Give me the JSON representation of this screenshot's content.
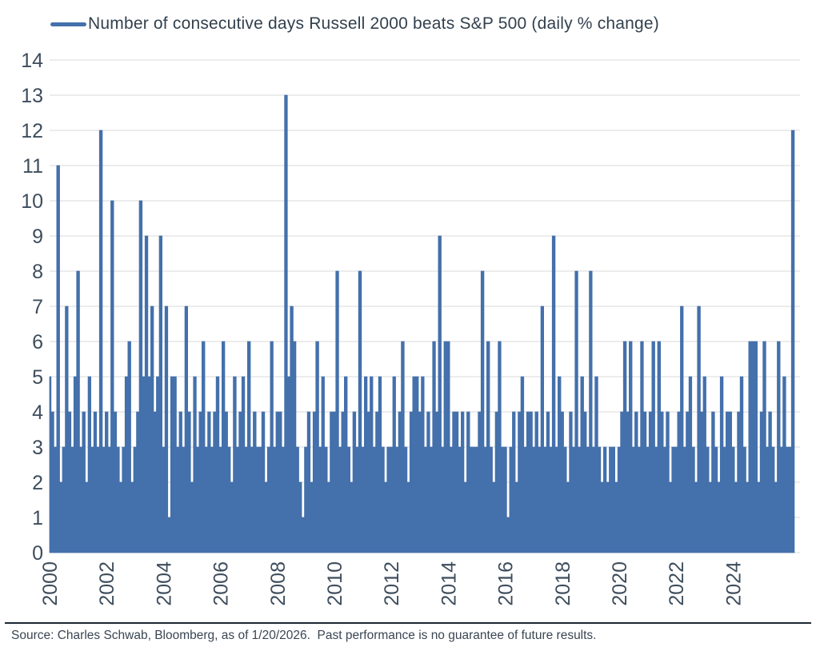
{
  "footer": {
    "source": "Source: Charles Schwab, Bloomberg, as of 1/20/2026.  Past performance is no guarantee of future results."
  },
  "colors": {
    "accent": "#4470AB",
    "title_text": "#32404E",
    "axis_text": "#3E4D5C",
    "footer_text": "#3A4653",
    "grid": "#D8D8D8",
    "divider": "#1C2833",
    "background": "#FFFFFF"
  },
  "chart_data": {
    "type": "area",
    "title": "Number of consecutive days Russell 2000 beats S&P 500 (daily % change)",
    "xlabel": "",
    "ylabel": "",
    "ylim": [
      0,
      14
    ],
    "grid": true,
    "legend_position": "top-left",
    "series_color": "#4470AB",
    "y_tick_labels": [
      "0",
      "1",
      "2",
      "3",
      "4",
      "5",
      "6",
      "7",
      "8",
      "9",
      "10",
      "11",
      "12",
      "13",
      "14"
    ],
    "x_ticks": [
      2000,
      2002,
      2004,
      2006,
      2008,
      2010,
      2012,
      2014,
      2016,
      2018,
      2020,
      2022,
      2024
    ],
    "x_tick_labels": [
      "2000",
      "2002",
      "2004",
      "2006",
      "2008",
      "2010",
      "2012",
      "2014",
      "2016",
      "2018",
      "2020",
      "2022",
      "2024"
    ],
    "x_start": 2000.0,
    "x_step": 0.1,
    "notable_peaks": [
      {
        "x": 2000.3,
        "value": 11
      },
      {
        "x": 2001.8,
        "value": 12
      },
      {
        "x": 2002.2,
        "value": 10
      },
      {
        "x": 2003.2,
        "value": 10
      },
      {
        "x": 2008.3,
        "value": 13
      },
      {
        "x": 2013.7,
        "value": 9
      },
      {
        "x": 2017.7,
        "value": 9
      },
      {
        "x": 2026.1,
        "value": 12
      }
    ],
    "values": [
      5,
      4,
      3,
      11,
      2,
      3,
      7,
      4,
      3,
      5,
      8,
      3,
      4,
      2,
      5,
      3,
      4,
      3,
      12,
      3,
      4,
      3,
      10,
      4,
      3,
      2,
      3,
      5,
      6,
      2,
      3,
      4,
      10,
      5,
      9,
      5,
      7,
      4,
      5,
      9,
      3,
      7,
      1,
      5,
      5,
      3,
      4,
      3,
      7,
      4,
      2,
      5,
      3,
      4,
      6,
      3,
      4,
      3,
      4,
      5,
      3,
      6,
      4,
      3,
      2,
      5,
      3,
      4,
      5,
      3,
      6,
      3,
      4,
      3,
      3,
      4,
      2,
      3,
      6,
      3,
      4,
      4,
      3,
      13,
      5,
      7,
      6,
      3,
      2,
      1,
      3,
      4,
      2,
      4,
      6,
      3,
      5,
      3,
      2,
      4,
      4,
      8,
      3,
      4,
      5,
      3,
      2,
      4,
      3,
      8,
      3,
      5,
      4,
      5,
      3,
      4,
      5,
      3,
      2,
      3,
      3,
      5,
      3,
      4,
      6,
      3,
      2,
      4,
      5,
      5,
      4,
      5,
      3,
      4,
      3,
      6,
      4,
      9,
      3,
      6,
      6,
      3,
      4,
      4,
      3,
      4,
      2,
      4,
      3,
      3,
      3,
      4,
      8,
      3,
      6,
      3,
      2,
      4,
      6,
      3,
      3,
      1,
      3,
      4,
      2,
      4,
      5,
      3,
      4,
      4,
      3,
      4,
      3,
      7,
      3,
      4,
      3,
      9,
      3,
      5,
      4,
      3,
      2,
      4,
      3,
      8,
      3,
      5,
      4,
      3,
      8,
      3,
      5,
      3,
      2,
      3,
      2,
      3,
      3,
      2,
      3,
      4,
      6,
      4,
      6,
      3,
      4,
      3,
      6,
      4,
      3,
      4,
      6,
      3,
      6,
      4,
      3,
      4,
      2,
      3,
      3,
      4,
      7,
      3,
      4,
      5,
      3,
      2,
      7,
      4,
      5,
      3,
      2,
      4,
      3,
      2,
      5,
      3,
      4,
      4,
      3,
      2,
      4,
      5,
      3,
      2,
      6,
      6,
      6,
      2,
      4,
      6,
      3,
      4,
      3,
      2,
      6,
      3,
      5,
      3,
      3,
      12
    ]
  }
}
